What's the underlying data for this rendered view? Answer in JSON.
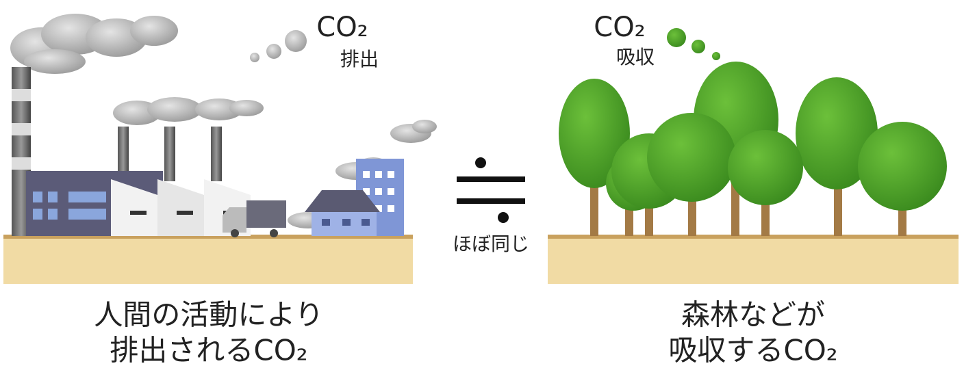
{
  "left": {
    "label_co2": "CO₂",
    "label_action": "排出",
    "caption": [
      "人間の活動により",
      "排出されるCO₂"
    ]
  },
  "middle": {
    "label": "ほぼ同じ"
  },
  "right": {
    "label_co2": "CO₂",
    "label_action": "吸収",
    "caption": [
      "森林などが",
      "吸収するCO₂"
    ]
  }
}
